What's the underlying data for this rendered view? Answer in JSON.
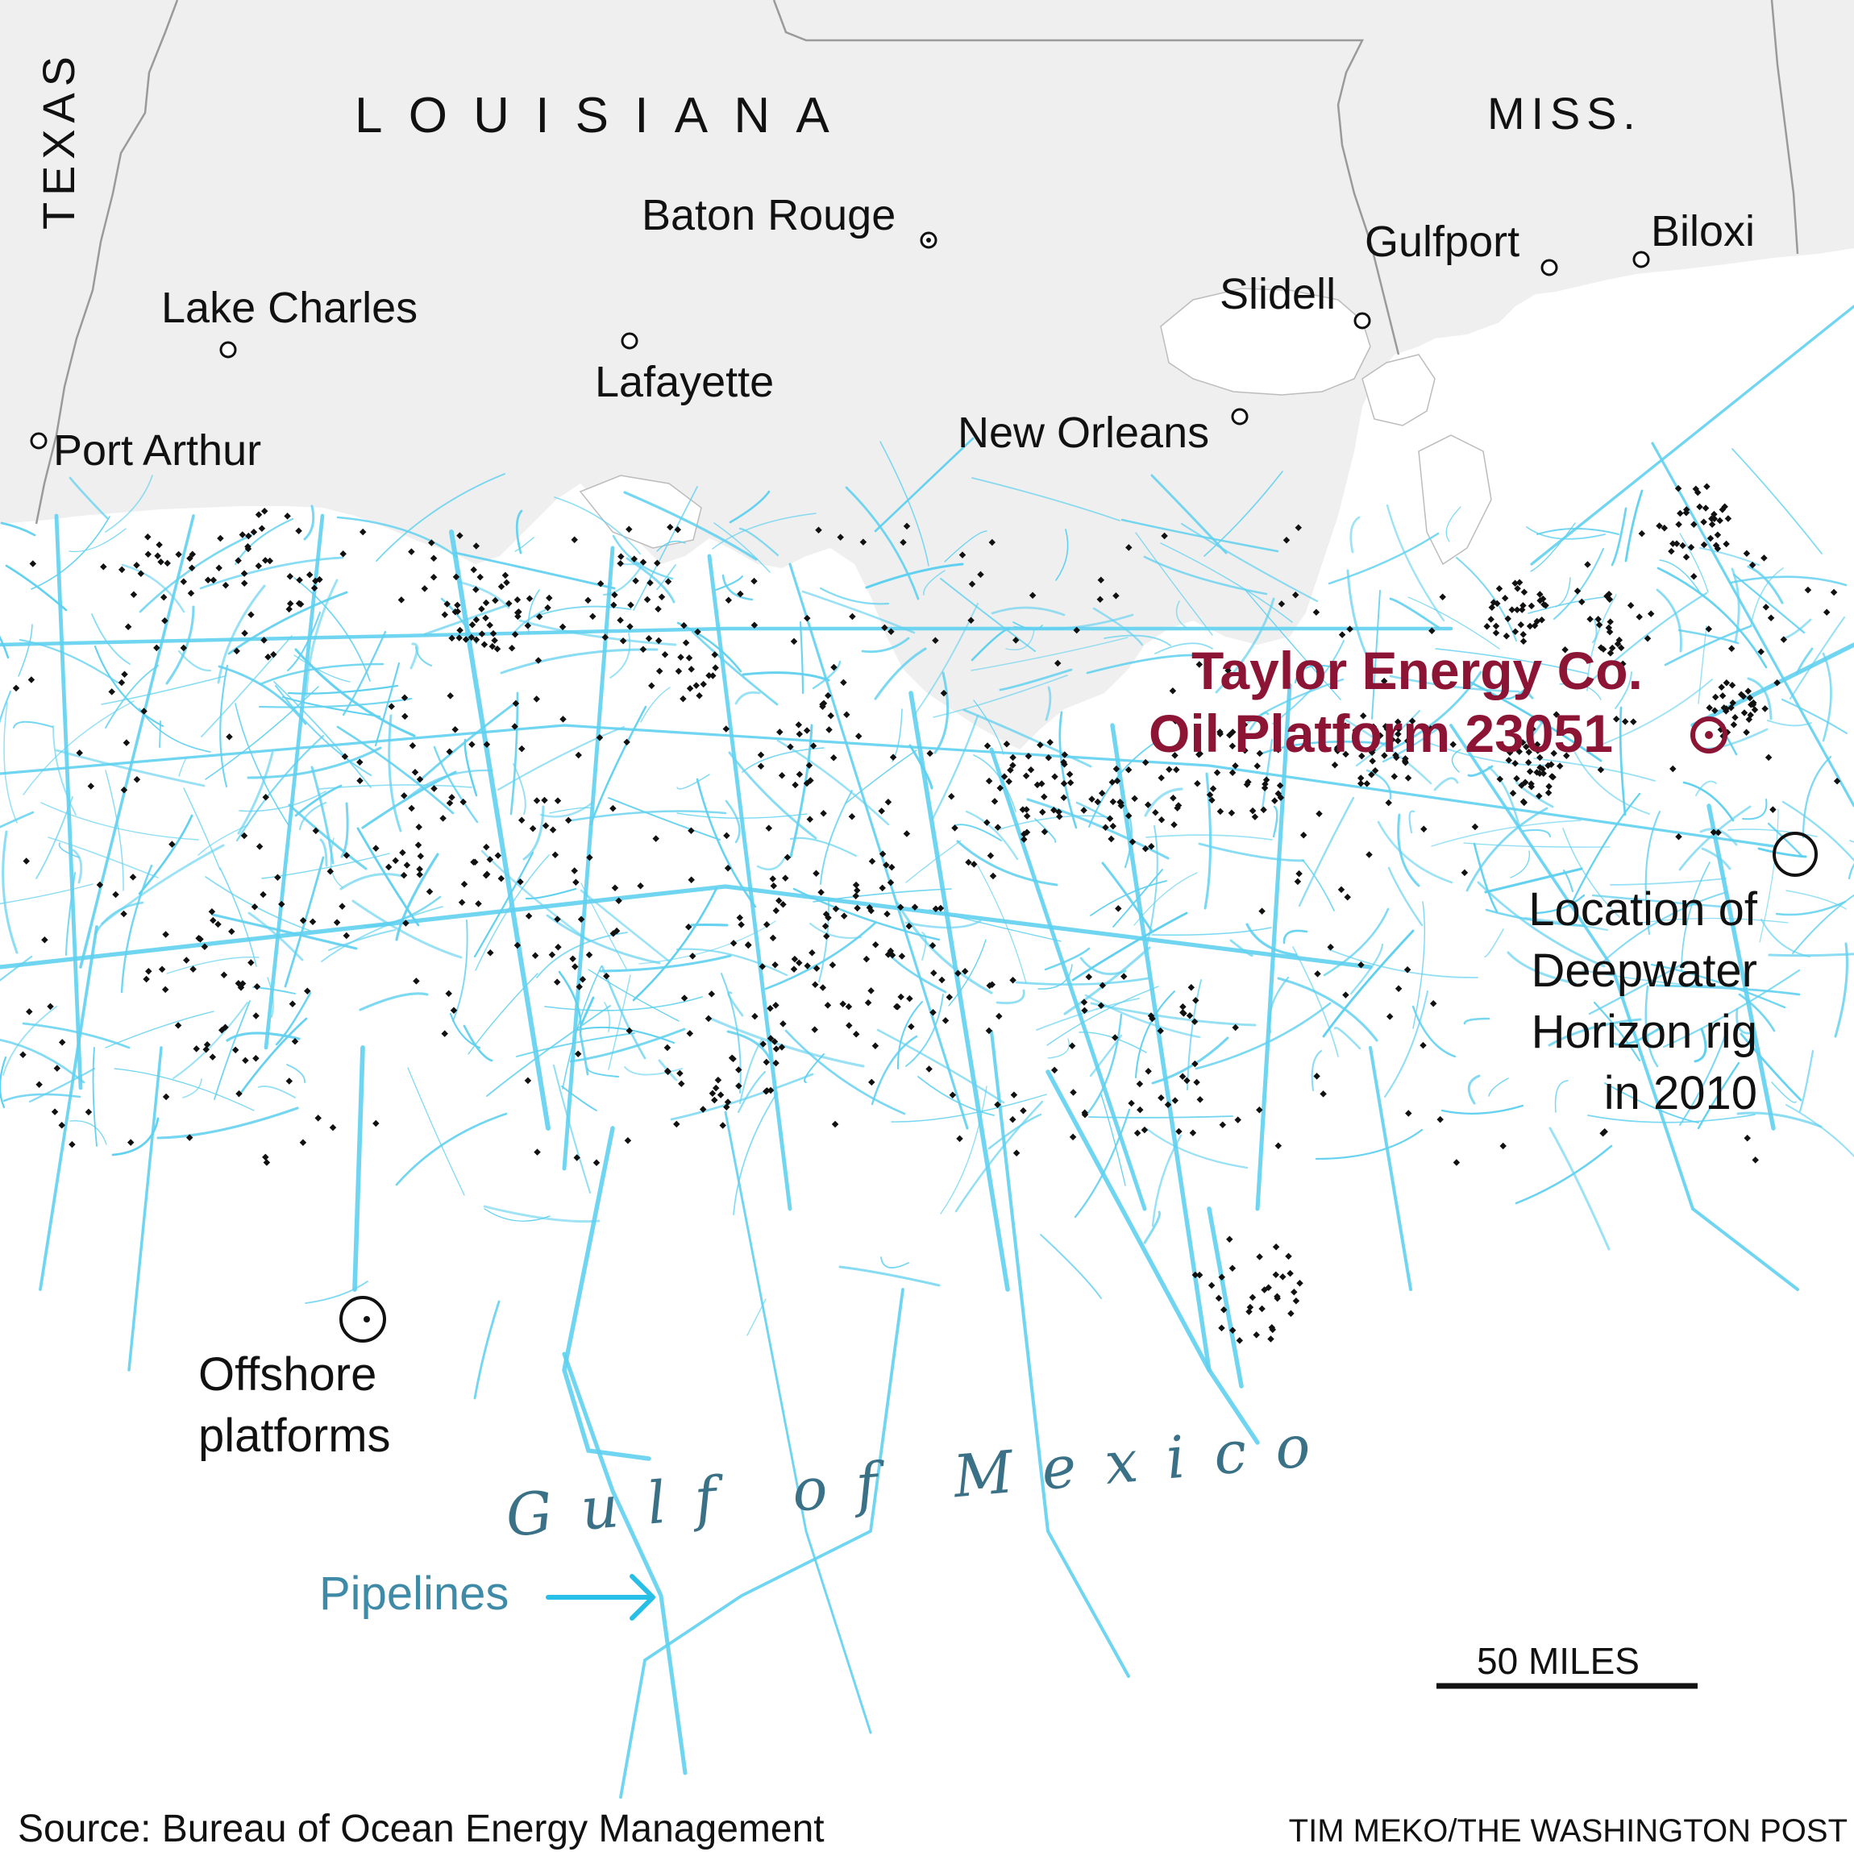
{
  "map": {
    "states": {
      "louisiana": "LOUISIANA",
      "texas": "TEXAS",
      "mississippi": "MISS."
    },
    "cities": {
      "baton_rouge": "Baton Rouge",
      "lake_charles": "Lake Charles",
      "lafayette": "Lafayette",
      "port_arthur": "Port Arthur",
      "new_orleans": "New Orleans",
      "slidell": "Slidell",
      "gulfport": "Gulfport",
      "biloxi": "Biloxi"
    },
    "highlight": {
      "line1": "Taylor Energy Co.",
      "line2": "Oil Platform 23051"
    },
    "deepwater": {
      "line1": "Location of",
      "line2": "Deepwater",
      "line3": "Horizon rig",
      "line4": "in 2010"
    },
    "offshore": {
      "line1": "Offshore",
      "line2": "platforms"
    },
    "water": "Gulf of Mexico",
    "pipelines_label": "Pipelines",
    "scale": "50 MILES",
    "source": "Source: Bureau of Ocean Energy Management",
    "credit": "TIM MEKO/THE WASHINGTON POST",
    "colors": {
      "land": "#efefef",
      "border": "#9a9a9a",
      "pipeline": "#5fd0ef",
      "platform": "#111111",
      "highlight": "#8c1535",
      "water_label": "#3a7186",
      "pipeline_label": "#3f8aa6"
    }
  }
}
